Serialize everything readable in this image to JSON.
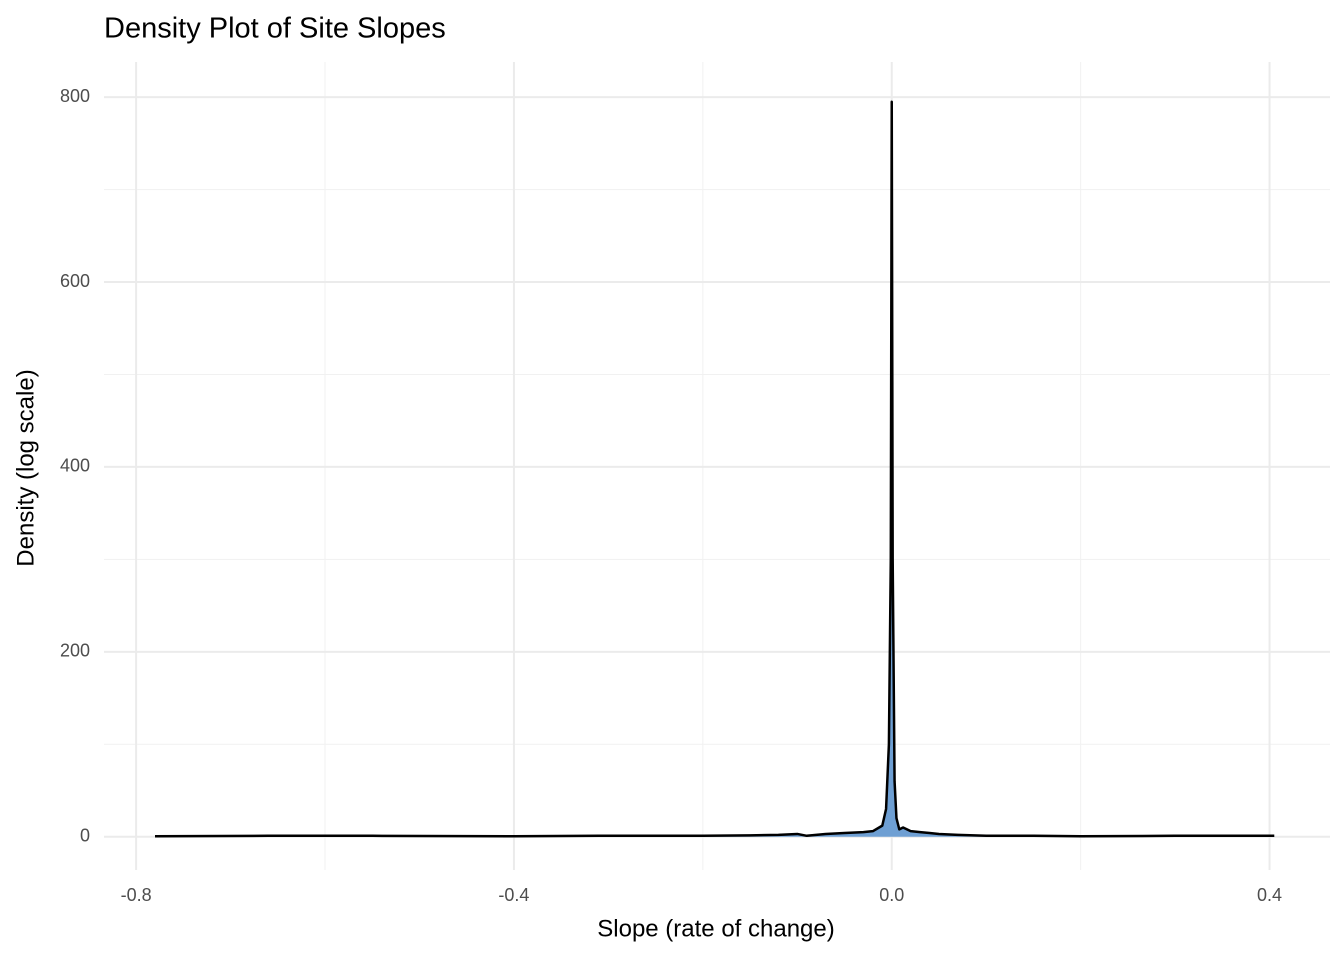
{
  "chart_data": {
    "type": "area",
    "title": "Density Plot of Site Slopes",
    "xlabel": "Slope (rate of change)",
    "ylabel": "Density (log scale)",
    "x": [
      -0.78,
      -0.66,
      -0.55,
      -0.4,
      -0.31,
      -0.2,
      -0.15,
      -0.12,
      -0.1,
      -0.09,
      -0.07,
      -0.05,
      -0.03,
      -0.02,
      -0.01,
      -0.006,
      -0.003,
      -0.001,
      0.0,
      0.001,
      0.003,
      0.005,
      0.008,
      0.012,
      0.02,
      0.03,
      0.04,
      0.05,
      0.07,
      0.1,
      0.15,
      0.2,
      0.3,
      0.35,
      0.405
    ],
    "y": [
      0.5,
      1,
      1,
      0.5,
      1,
      1,
      1.5,
      2,
      3,
      1,
      3,
      4,
      5,
      6,
      12,
      30,
      100,
      300,
      795,
      300,
      60,
      20,
      8,
      10,
      6,
      5,
      4,
      3,
      2,
      1,
      1,
      0.5,
      1,
      1,
      1
    ],
    "fill": "#6e9fd3",
    "line_color": "#000000",
    "xlim": [
      -0.834,
      0.464
    ],
    "ylim": [
      -36,
      838
    ],
    "xticks": [
      {
        "value": -0.8,
        "label": "-0.8"
      },
      {
        "value": -0.4,
        "label": "-0.4"
      },
      {
        "value": 0,
        "label": "0.0"
      },
      {
        "value": 0.4,
        "label": "0.4"
      }
    ],
    "yticks": [
      0,
      200,
      400,
      600,
      800
    ],
    "x_minor_grid": [
      -0.6,
      -0.2,
      0.2
    ],
    "y_minor_grid": [
      100,
      300,
      500,
      700
    ],
    "grid": true
  }
}
